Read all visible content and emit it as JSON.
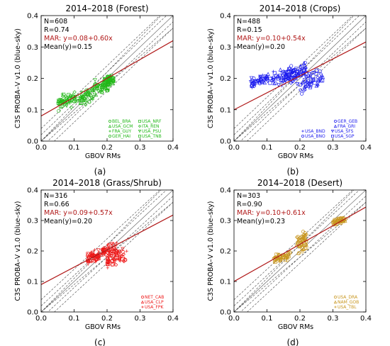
{
  "colors": {
    "axis": "#000000",
    "reference_lines": "#444444",
    "mar_line": "#b01818",
    "mar_text": "#b01818",
    "forest": "#22b818",
    "crops": "#1a1aee",
    "grass": "#ee1a1a",
    "desert": "#c8961e"
  },
  "chart_data": [
    {
      "type": "scatter",
      "panel_label": "(a)",
      "title": "2014–2018 (Forest)",
      "xlabel": "GBOV RMs",
      "ylabel": "C3S PROBA–V v1.0 (blue–sky)",
      "xlim": [
        0.0,
        0.4
      ],
      "ylim": [
        0.0,
        0.4
      ],
      "xticks": [
        "0.0",
        "0.1",
        "0.2",
        "0.3",
        "0.4"
      ],
      "yticks": [
        "0.0",
        "0.1",
        "0.2",
        "0.3",
        "0.4"
      ],
      "stats": {
        "n": "N=608",
        "r": "R=0.74",
        "mar": "MAR: y=0.08+0.60x",
        "mean": "Mean(y)=0.15"
      },
      "regression": {
        "intercept": 0.08,
        "slope": 0.6
      },
      "reference_lines": [
        {
          "intercept": 0.0,
          "slope": 1.0
        },
        {
          "intercept": 0.02,
          "slope": 1.0
        },
        {
          "intercept": -0.02,
          "slope": 1.0
        },
        {
          "intercept": 0.04,
          "slope": 1.0
        },
        {
          "intercept": -0.04,
          "slope": 1.0
        },
        {
          "intercept": 0.0,
          "slope": 1.1
        },
        {
          "intercept": 0.0,
          "slope": 0.9
        }
      ],
      "legend": [
        [
          "BEL_BRA",
          "USA_NRF"
        ],
        [
          "USA_GCM",
          "ITA_REN"
        ],
        [
          "FRA_GUY",
          "USA_PSU"
        ],
        [
          "GER_HAI",
          "USA_TNB"
        ]
      ],
      "clusters": [
        {
          "x": [
            0.05,
            0.1
          ],
          "yc": 0.13,
          "ys": 0.015
        },
        {
          "x": [
            0.1,
            0.16
          ],
          "yc": 0.14,
          "ys": 0.015
        },
        {
          "x": [
            0.16,
            0.21
          ],
          "yc": 0.17,
          "ys": 0.015
        },
        {
          "x": [
            0.19,
            0.22
          ],
          "yc": 0.195,
          "ys": 0.01
        }
      ],
      "seed": 11
    },
    {
      "type": "scatter",
      "panel_label": "(b)",
      "title": "2014–2018 (Crops)",
      "xlabel": "GBOV RMs",
      "ylabel": "C3S PROBA–V v1.0 (blue–sky)",
      "xlim": [
        0.0,
        0.4
      ],
      "ylim": [
        0.0,
        0.4
      ],
      "xticks": [
        "0.0",
        "0.1",
        "0.2",
        "0.3",
        "0.4"
      ],
      "yticks": [
        "0.0",
        "0.1",
        "0.2",
        "0.3",
        "0.4"
      ],
      "stats": {
        "n": "N=488",
        "r": "R=0.15",
        "mar": "MAR: y=0.10+0.54x",
        "mean": "Mean(y)=0.20"
      },
      "regression": {
        "intercept": 0.1,
        "slope": 0.54
      },
      "reference_lines": [
        {
          "intercept": 0.0,
          "slope": 1.0
        },
        {
          "intercept": 0.02,
          "slope": 1.0
        },
        {
          "intercept": -0.02,
          "slope": 1.0
        },
        {
          "intercept": 0.04,
          "slope": 1.0
        },
        {
          "intercept": -0.04,
          "slope": 1.0
        },
        {
          "intercept": 0.0,
          "slope": 1.1
        },
        {
          "intercept": 0.0,
          "slope": 0.9
        }
      ],
      "legend": [
        [
          "GER_GEB"
        ],
        [
          "FRA_GRI"
        ],
        [
          "USA_BND",
          "USA_SFS"
        ],
        [
          "USA_BNO",
          "USA_SGP"
        ]
      ],
      "clusters": [
        {
          "x": [
            0.05,
            0.12
          ],
          "yc": 0.195,
          "ys": 0.012
        },
        {
          "x": [
            0.12,
            0.2
          ],
          "yc": 0.205,
          "ys": 0.02
        },
        {
          "x": [
            0.2,
            0.27
          ],
          "yc": 0.19,
          "ys": 0.02
        },
        {
          "x": [
            0.15,
            0.22
          ],
          "yc": 0.22,
          "ys": 0.015
        }
      ],
      "seed": 23
    },
    {
      "type": "scatter",
      "panel_label": "(c)",
      "title": "2014–2018 (Grass/Shrub)",
      "xlabel": "GBOV RMs",
      "ylabel": "C3S PROBA–V v1.0 (blue–sky)",
      "xlim": [
        0.0,
        0.4
      ],
      "ylim": [
        0.0,
        0.4
      ],
      "xticks": [
        "0.0",
        "0.1",
        "0.2",
        "0.3",
        "0.4"
      ],
      "yticks": [
        "0.0",
        "0.1",
        "0.2",
        "0.3",
        "0.4"
      ],
      "stats": {
        "n": "N=316",
        "r": "R=0.66",
        "mar": "MAR: y=0.09+0.57x",
        "mean": "Mean(y)=0.20"
      },
      "regression": {
        "intercept": 0.09,
        "slope": 0.57
      },
      "reference_lines": [
        {
          "intercept": 0.0,
          "slope": 1.0
        },
        {
          "intercept": 0.02,
          "slope": 1.0
        },
        {
          "intercept": -0.02,
          "slope": 1.0
        },
        {
          "intercept": 0.04,
          "slope": 1.0
        },
        {
          "intercept": -0.04,
          "slope": 1.0
        },
        {
          "intercept": 0.0,
          "slope": 1.1
        },
        {
          "intercept": 0.0,
          "slope": 0.9
        }
      ],
      "legend": [
        [
          "NET_CAB"
        ],
        [
          "USA_CLP"
        ],
        [
          "USA_FPK"
        ]
      ],
      "clusters": [
        {
          "x": [
            0.14,
            0.18
          ],
          "yc": 0.18,
          "ys": 0.012
        },
        {
          "x": [
            0.18,
            0.23
          ],
          "yc": 0.2,
          "ys": 0.015
        },
        {
          "x": [
            0.2,
            0.26
          ],
          "yc": 0.175,
          "ys": 0.015
        }
      ],
      "seed": 37
    },
    {
      "type": "scatter",
      "panel_label": "(d)",
      "title": "2014–2018 (Desert)",
      "xlabel": "GBOV RMs",
      "ylabel": "C3S PROBA–V v1.0 (blue–sky)",
      "xlim": [
        0.0,
        0.4
      ],
      "ylim": [
        0.0,
        0.4
      ],
      "xticks": [
        "0.0",
        "0.1",
        "0.2",
        "0.3",
        "0.4"
      ],
      "yticks": [
        "0.0",
        "0.1",
        "0.2",
        "0.3",
        "0.4"
      ],
      "stats": {
        "n": "N=303",
        "r": "R=0.90",
        "mar": "MAR: y=0.10+0.61x",
        "mean": "Mean(y)=0.23"
      },
      "regression": {
        "intercept": 0.1,
        "slope": 0.61
      },
      "reference_lines": [
        {
          "intercept": 0.0,
          "slope": 1.0
        },
        {
          "intercept": 0.02,
          "slope": 1.0
        },
        {
          "intercept": -0.02,
          "slope": 1.0
        },
        {
          "intercept": 0.04,
          "slope": 1.0
        },
        {
          "intercept": -0.04,
          "slope": 1.0
        },
        {
          "intercept": 0.0,
          "slope": 1.1
        },
        {
          "intercept": 0.0,
          "slope": 0.9
        }
      ],
      "legend": [
        [
          "USA_DRA"
        ],
        [
          "NAM_GOB"
        ],
        [
          "USA_TBL"
        ]
      ],
      "clusters": [
        {
          "x": [
            0.12,
            0.17
          ],
          "yc": 0.18,
          "ys": 0.01
        },
        {
          "x": [
            0.19,
            0.22
          ],
          "yc": 0.23,
          "ys": 0.025
        },
        {
          "x": [
            0.3,
            0.34
          ],
          "yc": 0.3,
          "ys": 0.006
        }
      ],
      "seed": 53
    }
  ]
}
